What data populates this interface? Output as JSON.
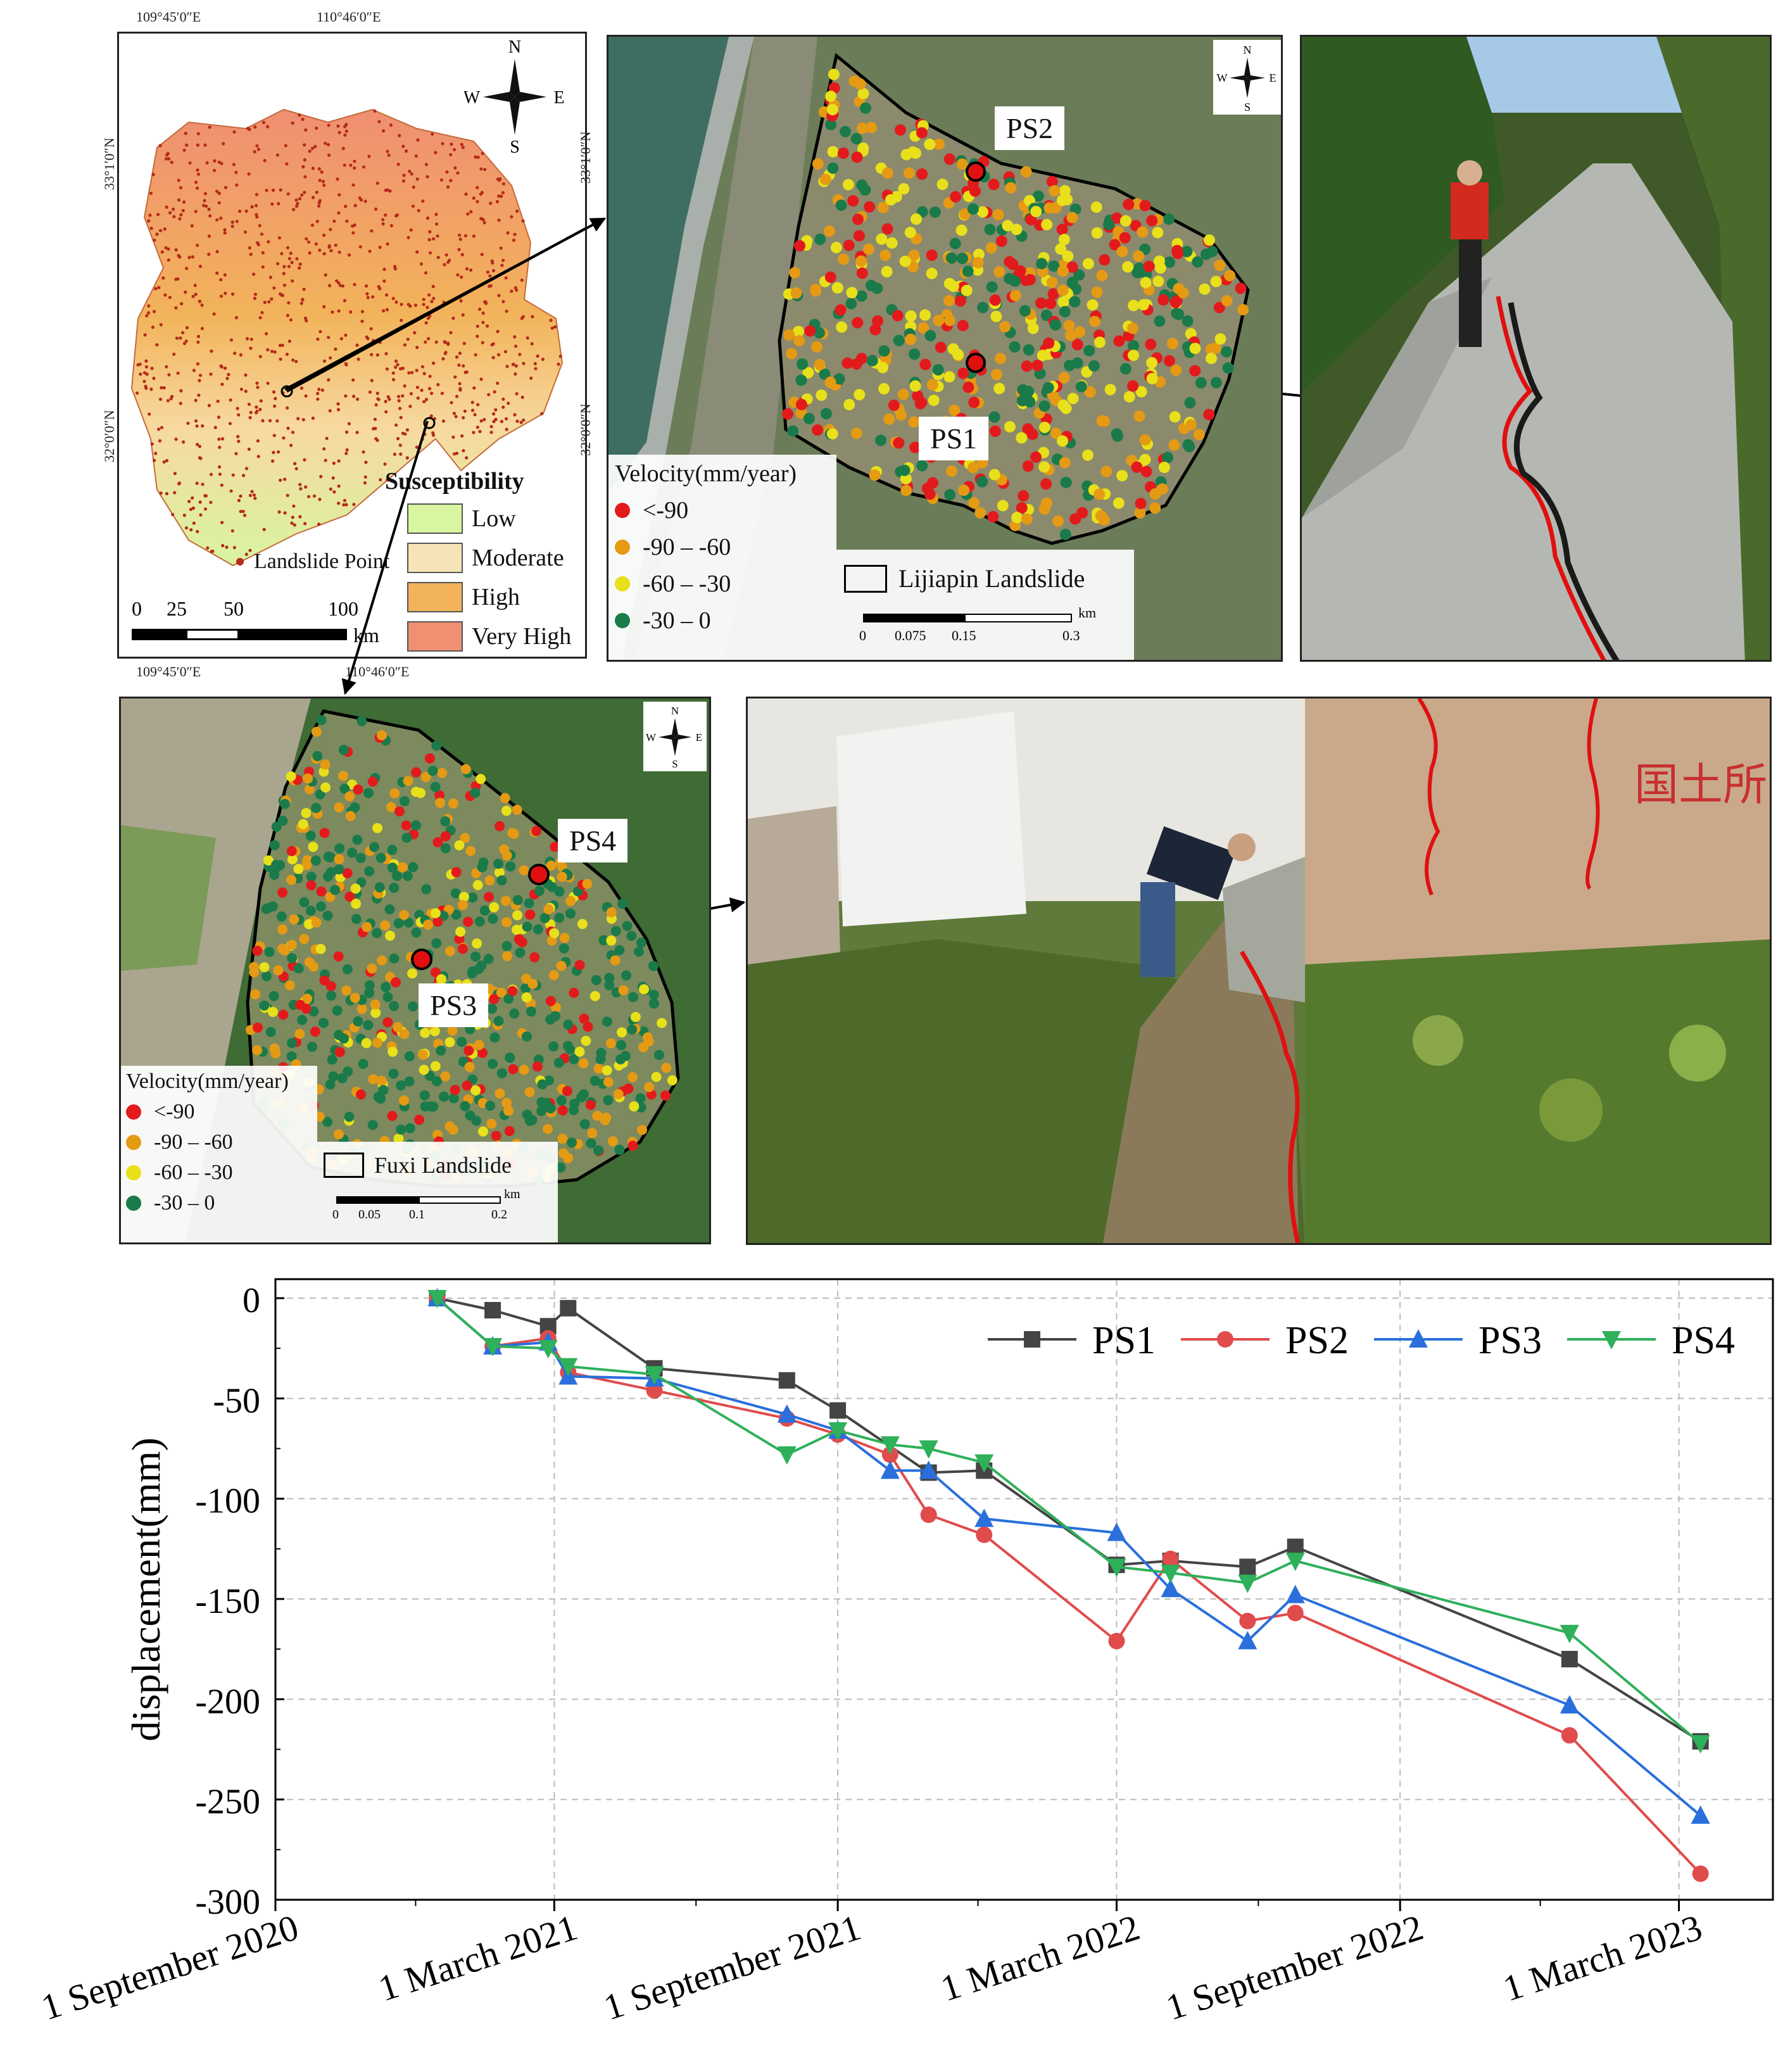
{
  "top_left_map": {
    "coord_top_1": "109°45′0″E",
    "coord_top_2": "110°46′0″E",
    "coord_bottom_1": "109°45′0″E",
    "coord_bottom_2": "110°46′0″E",
    "coord_left_1": "33°1′0″N",
    "coord_left_2": "32°0′0″N",
    "compass": {
      "n": "N",
      "s": "S",
      "e": "E",
      "w": "W"
    },
    "legend_title": "Susceptibility",
    "classes": [
      {
        "label": "Low",
        "color": "#d8f5a0"
      },
      {
        "label": "Moderate",
        "color": "#f7e3b8"
      },
      {
        "label": "High",
        "color": "#f2b35a"
      },
      {
        "label": "Very High",
        "color": "#f08f72"
      }
    ],
    "point_label": "Landslide Point",
    "scale": {
      "ticks": [
        "0",
        "25",
        "50",
        "100"
      ],
      "unit": "km"
    }
  },
  "lijiapin_map": {
    "coord_left_1": "33°1′0″N",
    "coord_left_2": "32°0′0″N",
    "ps_labels": [
      "PS2",
      "PS1"
    ],
    "velocity_title": "Velocity(mm/year)",
    "velocity_classes": [
      {
        "label": "<-90",
        "color": "#e31a1c"
      },
      {
        "label": "-90 – -60",
        "color": "#e59a14"
      },
      {
        "label": "-60 – -30",
        "color": "#e8e01a"
      },
      {
        "label": "-30 – 0",
        "color": "#1a7a4a"
      }
    ],
    "boundary_label": "Lijiapin Landslide",
    "scale": {
      "ticks": [
        "0",
        "0.075",
        "0.15",
        "0.3"
      ],
      "unit": "km"
    },
    "compass": {
      "n": "N",
      "s": "S",
      "e": "E",
      "w": "W"
    }
  },
  "fuxi_map": {
    "ps_labels": [
      "PS4",
      "PS3"
    ],
    "velocity_title": "Velocity(mm/year)",
    "velocity_classes": [
      {
        "label": "<-90",
        "color": "#e31a1c"
      },
      {
        "label": "-90 – -60",
        "color": "#e59a14"
      },
      {
        "label": "-60 – -30",
        "color": "#e8e01a"
      },
      {
        "label": "-30 – 0",
        "color": "#1a7a4a"
      }
    ],
    "boundary_label": "Fuxi Landslide",
    "scale": {
      "ticks": [
        "0",
        "0.05",
        "0.1",
        "0.2"
      ],
      "unit": "km"
    },
    "compass": {
      "n": "N",
      "s": "S",
      "e": "E",
      "w": "W"
    }
  },
  "photo_wall_text": "国土所",
  "colors": {
    "crack": "#e01010",
    "ps_marker": "#e01010",
    "arrow": "#000000"
  },
  "chart_data": {
    "type": "line",
    "title": "",
    "xlabel": "",
    "ylabel": "displacement(mm)",
    "ylim": [
      -300,
      0
    ],
    "yticks": [
      0,
      -50,
      -100,
      -150,
      -200,
      -250,
      -300
    ],
    "xlim": [
      "2020-09-01",
      "2023-05-01"
    ],
    "xticks": [
      "2020-09-01",
      "2021-03-01",
      "2021-09-01",
      "2022-03-01",
      "2022-09-01",
      "2023-03-01"
    ],
    "xtick_labels": [
      "1 September 2020",
      "1 March 2021",
      "1 September 2021",
      "1 March 2022",
      "1 September 2022",
      "1 March 2023"
    ],
    "grid": true,
    "legend": "top-right",
    "series": [
      {
        "name": "PS1",
        "color": "#444444",
        "marker": "square",
        "points": [
          [
            "2020-12-15",
            0
          ],
          [
            "2021-01-20",
            -6
          ],
          [
            "2021-02-25",
            -14
          ],
          [
            "2021-03-10",
            -5
          ],
          [
            "2021-05-05",
            -35
          ],
          [
            "2021-07-30",
            -41
          ],
          [
            "2021-09-01",
            -56
          ],
          [
            "2021-10-30",
            -87
          ],
          [
            "2021-12-05",
            -86
          ],
          [
            "2022-03-01",
            -133
          ],
          [
            "2022-04-05",
            -131
          ],
          [
            "2022-05-25",
            -134
          ],
          [
            "2022-06-25",
            -124
          ],
          [
            "2022-12-20",
            -180
          ],
          [
            "2023-03-15",
            -221
          ]
        ]
      },
      {
        "name": "PS2",
        "color": "#e04b4b",
        "marker": "circle",
        "points": [
          [
            "2020-12-15",
            0
          ],
          [
            "2021-01-20",
            -24
          ],
          [
            "2021-02-25",
            -20
          ],
          [
            "2021-03-10",
            -37
          ],
          [
            "2021-05-05",
            -46
          ],
          [
            "2021-07-30",
            -60
          ],
          [
            "2021-09-01",
            -68
          ],
          [
            "2021-10-05",
            -78
          ],
          [
            "2021-10-30",
            -108
          ],
          [
            "2021-12-05",
            -118
          ],
          [
            "2022-03-01",
            -171
          ],
          [
            "2022-04-05",
            -130
          ],
          [
            "2022-05-25",
            -161
          ],
          [
            "2022-06-25",
            -157
          ],
          [
            "2022-12-20",
            -218
          ],
          [
            "2023-03-15",
            -287
          ]
        ]
      },
      {
        "name": "PS3",
        "color": "#2a6fdb",
        "marker": "triangle-up",
        "points": [
          [
            "2020-12-15",
            0
          ],
          [
            "2021-01-20",
            -24
          ],
          [
            "2021-02-25",
            -22
          ],
          [
            "2021-03-10",
            -39
          ],
          [
            "2021-05-05",
            -40
          ],
          [
            "2021-07-30",
            -58
          ],
          [
            "2021-09-01",
            -66
          ],
          [
            "2021-10-05",
            -86
          ],
          [
            "2021-10-30",
            -86
          ],
          [
            "2021-12-05",
            -110
          ],
          [
            "2022-03-01",
            -117
          ],
          [
            "2022-04-05",
            -145
          ],
          [
            "2022-05-25",
            -171
          ],
          [
            "2022-06-25",
            -148
          ],
          [
            "2022-12-20",
            -203
          ],
          [
            "2023-03-15",
            -258
          ]
        ]
      },
      {
        "name": "PS4",
        "color": "#2fb05a",
        "marker": "triangle-down",
        "points": [
          [
            "2020-12-15",
            0
          ],
          [
            "2021-01-20",
            -24
          ],
          [
            "2021-02-25",
            -25
          ],
          [
            "2021-03-10",
            -34
          ],
          [
            "2021-05-05",
            -38
          ],
          [
            "2021-07-30",
            -78
          ],
          [
            "2021-09-01",
            -66
          ],
          [
            "2021-10-05",
            -73
          ],
          [
            "2021-10-30",
            -75
          ],
          [
            "2021-12-05",
            -82
          ],
          [
            "2022-03-01",
            -134
          ],
          [
            "2022-04-05",
            -137
          ],
          [
            "2022-05-25",
            -142
          ],
          [
            "2022-06-25",
            -131
          ],
          [
            "2022-12-20",
            -167
          ],
          [
            "2023-03-15",
            -222
          ]
        ]
      }
    ]
  }
}
